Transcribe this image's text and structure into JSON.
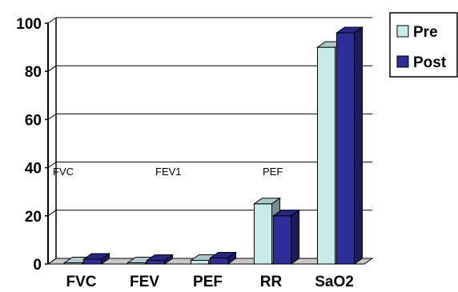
{
  "chart_data": {
    "type": "bar",
    "categories": [
      "FVC",
      "FEV",
      "PEF",
      "RR",
      "SaO2"
    ],
    "series": [
      {
        "name": "Pre",
        "values": [
          0.5,
          0.5,
          1.5,
          25,
          90
        ],
        "color": "#c8ecec"
      },
      {
        "name": "Post",
        "values": [
          2,
          1.5,
          2.5,
          20,
          96
        ],
        "color": "#2e2e99"
      }
    ],
    "ylim": [
      0,
      100
    ],
    "yticks": [
      0,
      20,
      40,
      60,
      80,
      100
    ],
    "grid": true,
    "legend": "top-right",
    "annotations": [
      "FVC",
      "FEV1",
      "PEF"
    ]
  }
}
